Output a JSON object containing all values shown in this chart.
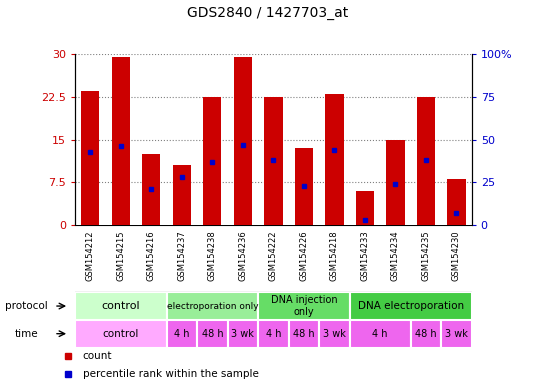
{
  "title": "GDS2840 / 1427703_at",
  "samples": [
    "GSM154212",
    "GSM154215",
    "GSM154216",
    "GSM154237",
    "GSM154238",
    "GSM154236",
    "GSM154222",
    "GSM154226",
    "GSM154218",
    "GSM154233",
    "GSM154234",
    "GSM154235",
    "GSM154230"
  ],
  "counts": [
    23.5,
    29.5,
    12.5,
    10.5,
    22.5,
    29.5,
    22.5,
    13.5,
    23.0,
    6.0,
    15.0,
    22.5,
    8.0
  ],
  "percentile_ranks": [
    43,
    46,
    21,
    28,
    37,
    47,
    38,
    23,
    44,
    3,
    24,
    38,
    7
  ],
  "bar_color": "#cc0000",
  "dot_color": "#0000cc",
  "ylim_left": [
    0,
    30
  ],
  "ylim_right": [
    0,
    100
  ],
  "yticks_left": [
    0,
    7.5,
    15,
    22.5,
    30
  ],
  "ytick_labels_left": [
    "0",
    "7.5",
    "15",
    "22.5",
    "30"
  ],
  "yticks_right": [
    0,
    25,
    50,
    75,
    100
  ],
  "ytick_labels_right": [
    "0",
    "25",
    "50",
    "75",
    "100%"
  ],
  "protocol_groups": [
    {
      "label": "control",
      "start": 0,
      "end": 3,
      "color": "#ccffcc"
    },
    {
      "label": "electroporation only",
      "start": 3,
      "end": 6,
      "color": "#99ee99"
    },
    {
      "label": "DNA injection\nonly",
      "start": 6,
      "end": 9,
      "color": "#66dd66"
    },
    {
      "label": "DNA electroporation",
      "start": 9,
      "end": 13,
      "color": "#44cc44"
    }
  ],
  "time_entries": [
    {
      "label": "control",
      "start": 0,
      "end": 3,
      "color": "#ffaaff"
    },
    {
      "label": "4 h",
      "start": 3,
      "end": 4,
      "color": "#ee66ee"
    },
    {
      "label": "48 h",
      "start": 4,
      "end": 5,
      "color": "#ee66ee"
    },
    {
      "label": "3 wk",
      "start": 5,
      "end": 6,
      "color": "#ee66ee"
    },
    {
      "label": "4 h",
      "start": 6,
      "end": 7,
      "color": "#ee66ee"
    },
    {
      "label": "48 h",
      "start": 7,
      "end": 8,
      "color": "#ee66ee"
    },
    {
      "label": "3 wk",
      "start": 8,
      "end": 9,
      "color": "#ee66ee"
    },
    {
      "label": "4 h",
      "start": 9,
      "end": 11,
      "color": "#ee66ee"
    },
    {
      "label": "48 h",
      "start": 11,
      "end": 12,
      "color": "#ee66ee"
    },
    {
      "label": "3 wk",
      "start": 12,
      "end": 13,
      "color": "#ee66ee"
    }
  ],
  "legend_count_color": "#cc0000",
  "legend_pct_color": "#0000cc",
  "bg_color": "#ffffff",
  "bar_width": 0.6,
  "sample_bg": "#cccccc",
  "protocol_fontsizes": [
    8,
    6.5,
    7,
    7.5
  ]
}
